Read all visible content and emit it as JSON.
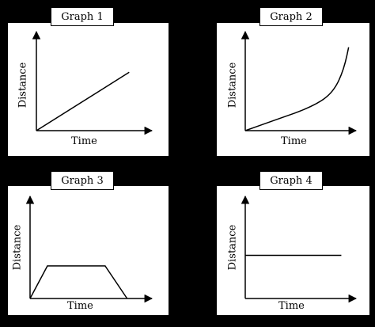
{
  "colors": {
    "background": "#000000",
    "panel": "#ffffff",
    "ink": "#000000"
  },
  "chart_data": [
    {
      "type": "line",
      "title": "Graph 1",
      "xlabel": "Time",
      "ylabel": "Distance",
      "xlim": [
        0,
        10
      ],
      "ylim": [
        0,
        10
      ],
      "grid": false,
      "series": [
        {
          "x": [
            0,
            8.5
          ],
          "y": [
            0,
            6.3
          ]
        }
      ]
    },
    {
      "type": "line",
      "title": "Graph 2",
      "xlabel": "Time",
      "ylabel": "Distance",
      "xlim": [
        0,
        10
      ],
      "ylim": [
        0,
        10
      ],
      "grid": false,
      "series": [
        {
          "x": [
            0,
            2,
            4,
            5.5,
            7,
            8,
            8.7,
            9.2,
            9.6,
            9.9
          ],
          "y": [
            0,
            0.8,
            1.6,
            2.2,
            3.0,
            3.8,
            4.8,
            6.0,
            7.4,
            9.0
          ]
        }
      ]
    },
    {
      "type": "line",
      "title": "Graph 3",
      "xlabel": "Time",
      "ylabel": "Distance",
      "xlim": [
        0,
        10
      ],
      "ylim": [
        0,
        10
      ],
      "grid": false,
      "series": [
        {
          "x": [
            0,
            1.5,
            6.5,
            8.4
          ],
          "y": [
            0,
            3.4,
            3.4,
            0
          ]
        }
      ]
    },
    {
      "type": "line",
      "title": "Graph 4",
      "xlabel": "Time",
      "ylabel": "Distance",
      "xlim": [
        0,
        10
      ],
      "ylim": [
        0,
        10
      ],
      "grid": false,
      "series": [
        {
          "x": [
            0,
            9.2
          ],
          "y": [
            4.5,
            4.5
          ]
        }
      ]
    }
  ]
}
